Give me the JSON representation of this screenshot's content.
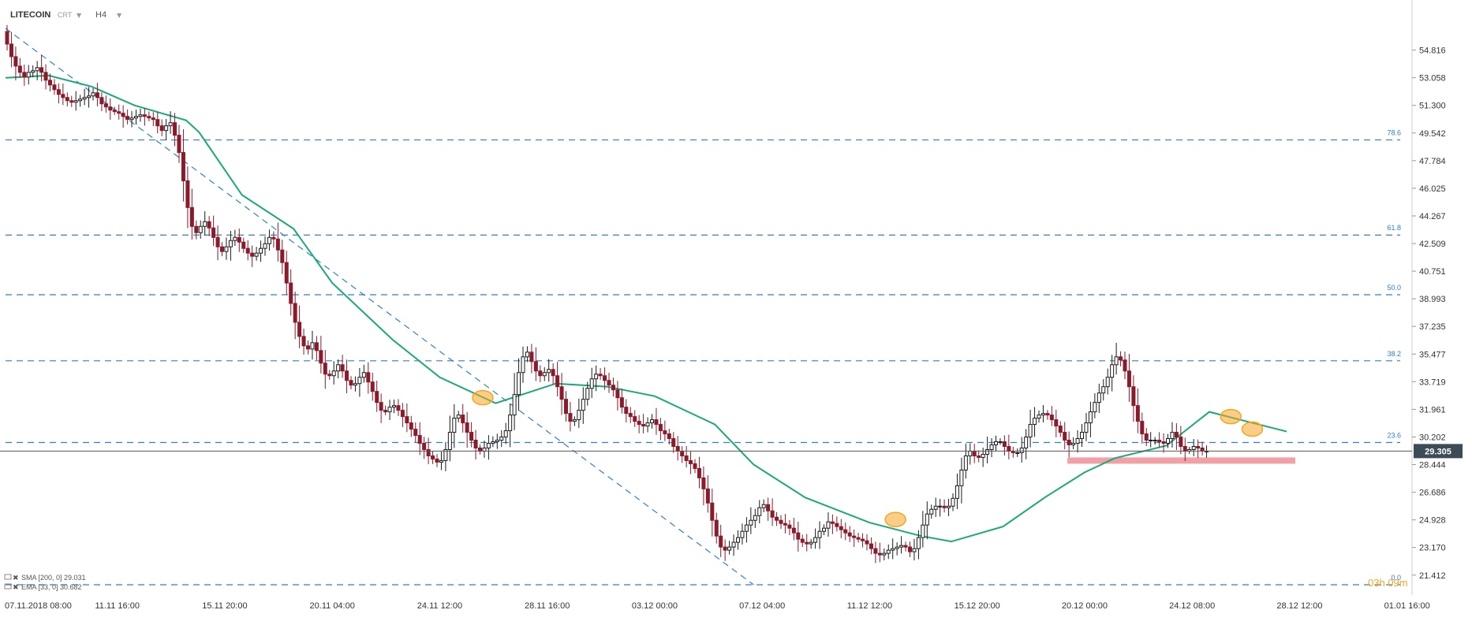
{
  "header": {
    "symbol": "LITECOIN",
    "type": "CRT",
    "timeframe": "H4"
  },
  "colors": {
    "bull": "#1a1a1a",
    "bear": "#8b1a2b",
    "ema": "#19a979",
    "fib": "#2f7fd0",
    "last_price_line": "#555555",
    "last_price_badge": "#3d4a57",
    "support_zone": "#ef8f95",
    "highlight_marker": "#f5a623"
  },
  "countdown": "03h 09m",
  "legend": [
    {
      "icon": "indicator-icon",
      "text": "SMA [200, 0] 29.031"
    },
    {
      "icon": "indicator-icon",
      "text": "EMA [33, 0] 30.682"
    }
  ],
  "chart_data": {
    "type": "candlestick",
    "title": "LITECOIN",
    "subtitle": "CRT H4",
    "ylim": [
      20.8,
      56.5
    ],
    "y_ticks": [
      "54.816",
      "53.058",
      "51.300",
      "49.542",
      "47.784",
      "46.025",
      "44.267",
      "42.509",
      "40.751",
      "38.993",
      "37.235",
      "35.477",
      "33.719",
      "31.961",
      "30.202",
      "28.444",
      "26.686",
      "24.928",
      "23.170",
      "21.412"
    ],
    "x_ticks": [
      "07.11.2018 08:00",
      "11.11 16:00",
      "15.11 20:00",
      "20.11 04:00",
      "24.11 12:00",
      "28.11 16:00",
      "03.12 00:00",
      "07.12 04:00",
      "11.12 12:00",
      "15.12 20:00",
      "20.12 00:00",
      "24.12 08:00",
      "28.12 12:00",
      "01.01 16:00"
    ],
    "x_tick_positions": [
      0,
      26,
      51,
      76,
      101,
      126,
      151,
      176,
      201,
      226,
      251,
      276,
      301,
      326
    ],
    "total_slots": 327,
    "last_price": "29.305",
    "grid": false,
    "fibonacci": [
      {
        "label": "78.6",
        "value": 49.1
      },
      {
        "label": "61.8",
        "value": 43.05
      },
      {
        "label": "50.0",
        "value": 39.25
      },
      {
        "label": "38.2",
        "value": 35.05
      },
      {
        "label": "23.6",
        "value": 29.85
      },
      {
        "label": "0.0",
        "value": 20.8
      }
    ],
    "trendline": {
      "from": [
        0,
        56.2
      ],
      "to": [
        174,
        20.8
      ]
    },
    "support_zone": {
      "x": [
        247,
        300
      ],
      "y": [
        28.5,
        28.9
      ]
    },
    "ema_series": {
      "name": "EMA [33, 0] 30.682",
      "points": [
        [
          0,
          53.05
        ],
        [
          10,
          53.2
        ],
        [
          20,
          52.5
        ],
        [
          30,
          51.3
        ],
        [
          42,
          50.35
        ],
        [
          45,
          49.6
        ],
        [
          55,
          45.6
        ],
        [
          67,
          43.45
        ],
        [
          76,
          40.0
        ],
        [
          90,
          36.4
        ],
        [
          101,
          34.0
        ],
        [
          114,
          32.35
        ],
        [
          128,
          33.6
        ],
        [
          140,
          33.4
        ],
        [
          151,
          32.8
        ],
        [
          165,
          31.0
        ],
        [
          174,
          28.45
        ],
        [
          186,
          26.35
        ],
        [
          201,
          24.75
        ],
        [
          213,
          23.9
        ],
        [
          220,
          23.55
        ],
        [
          232,
          24.5
        ],
        [
          242,
          26.4
        ],
        [
          251,
          27.95
        ],
        [
          258,
          28.85
        ],
        [
          270,
          29.65
        ],
        [
          280,
          31.8
        ],
        [
          290,
          31.1
        ],
        [
          298,
          30.55
        ]
      ]
    },
    "markers": [
      {
        "x": 111,
        "y": 32.7
      },
      {
        "x": 207,
        "y": 24.95
      },
      {
        "x": 285,
        "y": 31.5
      },
      {
        "x": 290,
        "y": 30.7
      }
    ],
    "candles_o": [
      56,
      55.2,
      54.4,
      53.8,
      53.4,
      53.1,
      53.4,
      53.5,
      53.7,
      53.4,
      52.9,
      52.6,
      52.3,
      52.0,
      51.8,
      51.6,
      51.5,
      51.6,
      51.7,
      51.8,
      51.9,
      52.1,
      51.8,
      51.4,
      51.2,
      51.0,
      50.9,
      50.8,
      50.6,
      50.4,
      50.5,
      50.6,
      50.7,
      50.6,
      50.5,
      50.4,
      50.0,
      49.7,
      50.0,
      50.2,
      49.4,
      48.3,
      46.5,
      44.8,
      43.6,
      43.2,
      43.6,
      43.9,
      43.5,
      42.9,
      42.3,
      42.0,
      42.3,
      42.7,
      42.9,
      42.6,
      42.2,
      41.9,
      41.7,
      41.9,
      42.2,
      42.5,
      42.9,
      42.8,
      42.1,
      41.3,
      40.0,
      38.7,
      37.5,
      36.6,
      36.0,
      35.8,
      36.2,
      35.7,
      34.9,
      34.2,
      34.1,
      34.4,
      34.8,
      34.4,
      33.8,
      33.5,
      33.6,
      34.0,
      34.3,
      33.7,
      33.1,
      32.4,
      31.9,
      31.8,
      32.1,
      32.2,
      31.9,
      31.5,
      31.1,
      30.7,
      30.3,
      29.8,
      29.4,
      29.0,
      28.8,
      28.6,
      28.7,
      29.4,
      30.5,
      31.4,
      31.6,
      31.1,
      30.5,
      30.0,
      29.5,
      29.3,
      29.5,
      29.8,
      29.9,
      30.0,
      30.2,
      30.6,
      31.6,
      32.9,
      34.3,
      35.3,
      35.6,
      35.0,
      34.4,
      34.1,
      34.3,
      34.5,
      34.1,
      33.4,
      32.6,
      31.7,
      31.2,
      31.3,
      31.9,
      32.6,
      33.3,
      33.9,
      34.2,
      34.1,
      33.8,
      33.5,
      33.2,
      32.7,
      32.1,
      31.7,
      31.5,
      31.2,
      31.0,
      30.9,
      31.1,
      31.3,
      31.0,
      30.6,
      30.4,
      30.1,
      29.6,
      29.3,
      29.0,
      28.7,
      28.5,
      28.2,
      27.6,
      26.9,
      26.0,
      24.9,
      23.9,
      23.2,
      23.0,
      23.2,
      23.5,
      23.8,
      24.2,
      24.6,
      24.9,
      25.2,
      25.7,
      25.9,
      25.5,
      25.1,
      24.9,
      24.7,
      24.6,
      24.4,
      24.1,
      23.7,
      23.5,
      23.4,
      23.5,
      23.8,
      24.2,
      24.4,
      24.8,
      24.7,
      24.5,
      24.3,
      24.1,
      23.9,
      23.8,
      23.7,
      23.6,
      23.4,
      23.1,
      22.8,
      22.7,
      22.8,
      23.0,
      23.1,
      23.2,
      23.3,
      23.2,
      22.9,
      23.1,
      23.8,
      24.6,
      25.3,
      25.6,
      25.8,
      25.8,
      25.7,
      25.8,
      26.3,
      27.1,
      28.1,
      29.0,
      29.3,
      29.0,
      28.9,
      29.1,
      29.4,
      29.7,
      29.9,
      29.9,
      29.6,
      29.3,
      29.2,
      29.2,
      29.5,
      30.2,
      31.0,
      31.4,
      31.6,
      31.7,
      31.6,
      31.3,
      30.9,
      30.5,
      30.0,
      29.7,
      29.8,
      30.1,
      30.5,
      31.1,
      31.8,
      32.4,
      33.0,
      33.4,
      34.0,
      34.8,
      35.3,
      35.1,
      34.4,
      33.4,
      32.2,
      31.2,
      30.4,
      30.0,
      30.0,
      30.0,
      29.9,
      29.8,
      30.1,
      30.5,
      30.2,
      29.6,
      29.3,
      29.4,
      29.6,
      29.5,
      29.3
    ],
    "candles_c": [
      55.2,
      54.4,
      53.8,
      53.4,
      53.1,
      53.4,
      53.5,
      53.7,
      53.4,
      52.9,
      52.6,
      52.3,
      52.0,
      51.8,
      51.6,
      51.5,
      51.6,
      51.7,
      51.8,
      51.9,
      52.1,
      51.8,
      51.4,
      51.2,
      51.0,
      50.9,
      50.8,
      50.6,
      50.4,
      50.5,
      50.6,
      50.7,
      50.6,
      50.5,
      50.4,
      50.0,
      49.7,
      50.0,
      50.2,
      49.4,
      48.3,
      46.5,
      44.8,
      43.6,
      43.2,
      43.6,
      43.9,
      43.5,
      42.9,
      42.3,
      42.0,
      42.3,
      42.7,
      42.9,
      42.6,
      42.2,
      41.9,
      41.7,
      41.9,
      42.2,
      42.5,
      42.9,
      42.8,
      42.1,
      41.3,
      40.0,
      38.7,
      37.5,
      36.6,
      36.0,
      35.8,
      36.2,
      35.7,
      34.9,
      34.2,
      34.1,
      34.4,
      34.8,
      34.4,
      33.8,
      33.5,
      33.6,
      34.0,
      34.3,
      33.7,
      33.1,
      32.4,
      31.9,
      31.8,
      32.1,
      32.2,
      31.9,
      31.5,
      31.1,
      30.7,
      30.3,
      29.8,
      29.4,
      29.0,
      28.8,
      28.6,
      28.7,
      29.4,
      30.5,
      31.4,
      31.6,
      31.1,
      30.5,
      30.0,
      29.5,
      29.3,
      29.5,
      29.8,
      29.9,
      30.0,
      30.2,
      30.6,
      31.6,
      32.9,
      34.3,
      35.3,
      35.6,
      35.0,
      34.4,
      34.1,
      34.3,
      34.5,
      34.1,
      33.4,
      32.6,
      31.7,
      31.2,
      31.3,
      31.9,
      32.6,
      33.3,
      33.9,
      34.2,
      34.1,
      33.8,
      33.5,
      33.2,
      32.7,
      32.1,
      31.7,
      31.5,
      31.2,
      31.0,
      30.9,
      31.1,
      31.3,
      31.0,
      30.6,
      30.4,
      30.1,
      29.6,
      29.3,
      29.0,
      28.7,
      28.5,
      28.2,
      27.6,
      26.9,
      26.0,
      24.9,
      23.9,
      23.2,
      23.0,
      23.2,
      23.5,
      23.8,
      24.2,
      24.6,
      24.9,
      25.2,
      25.7,
      25.9,
      25.5,
      25.1,
      24.9,
      24.7,
      24.6,
      24.4,
      24.1,
      23.7,
      23.5,
      23.4,
      23.5,
      23.8,
      24.2,
      24.4,
      24.8,
      24.7,
      24.5,
      24.3,
      24.1,
      23.9,
      23.8,
      23.7,
      23.6,
      23.4,
      23.1,
      22.8,
      22.7,
      22.8,
      23.0,
      23.1,
      23.2,
      23.3,
      23.2,
      22.9,
      23.1,
      23.8,
      24.6,
      25.3,
      25.6,
      25.8,
      25.8,
      25.7,
      25.8,
      26.3,
      27.1,
      28.1,
      29.0,
      29.3,
      29.0,
      28.9,
      29.1,
      29.4,
      29.7,
      29.9,
      29.9,
      29.6,
      29.3,
      29.2,
      29.2,
      29.5,
      30.2,
      31.0,
      31.4,
      31.6,
      31.7,
      31.6,
      31.3,
      30.9,
      30.5,
      30.0,
      29.7,
      29.8,
      30.1,
      30.5,
      31.1,
      31.8,
      32.4,
      33.0,
      33.4,
      34.0,
      34.8,
      35.3,
      35.1,
      34.4,
      33.4,
      32.2,
      31.2,
      30.4,
      30.0,
      30.0,
      30.0,
      29.9,
      29.8,
      30.1,
      30.5,
      30.2,
      29.6,
      29.3,
      29.4,
      29.6,
      29.5,
      29.3,
      29.3
    ]
  }
}
